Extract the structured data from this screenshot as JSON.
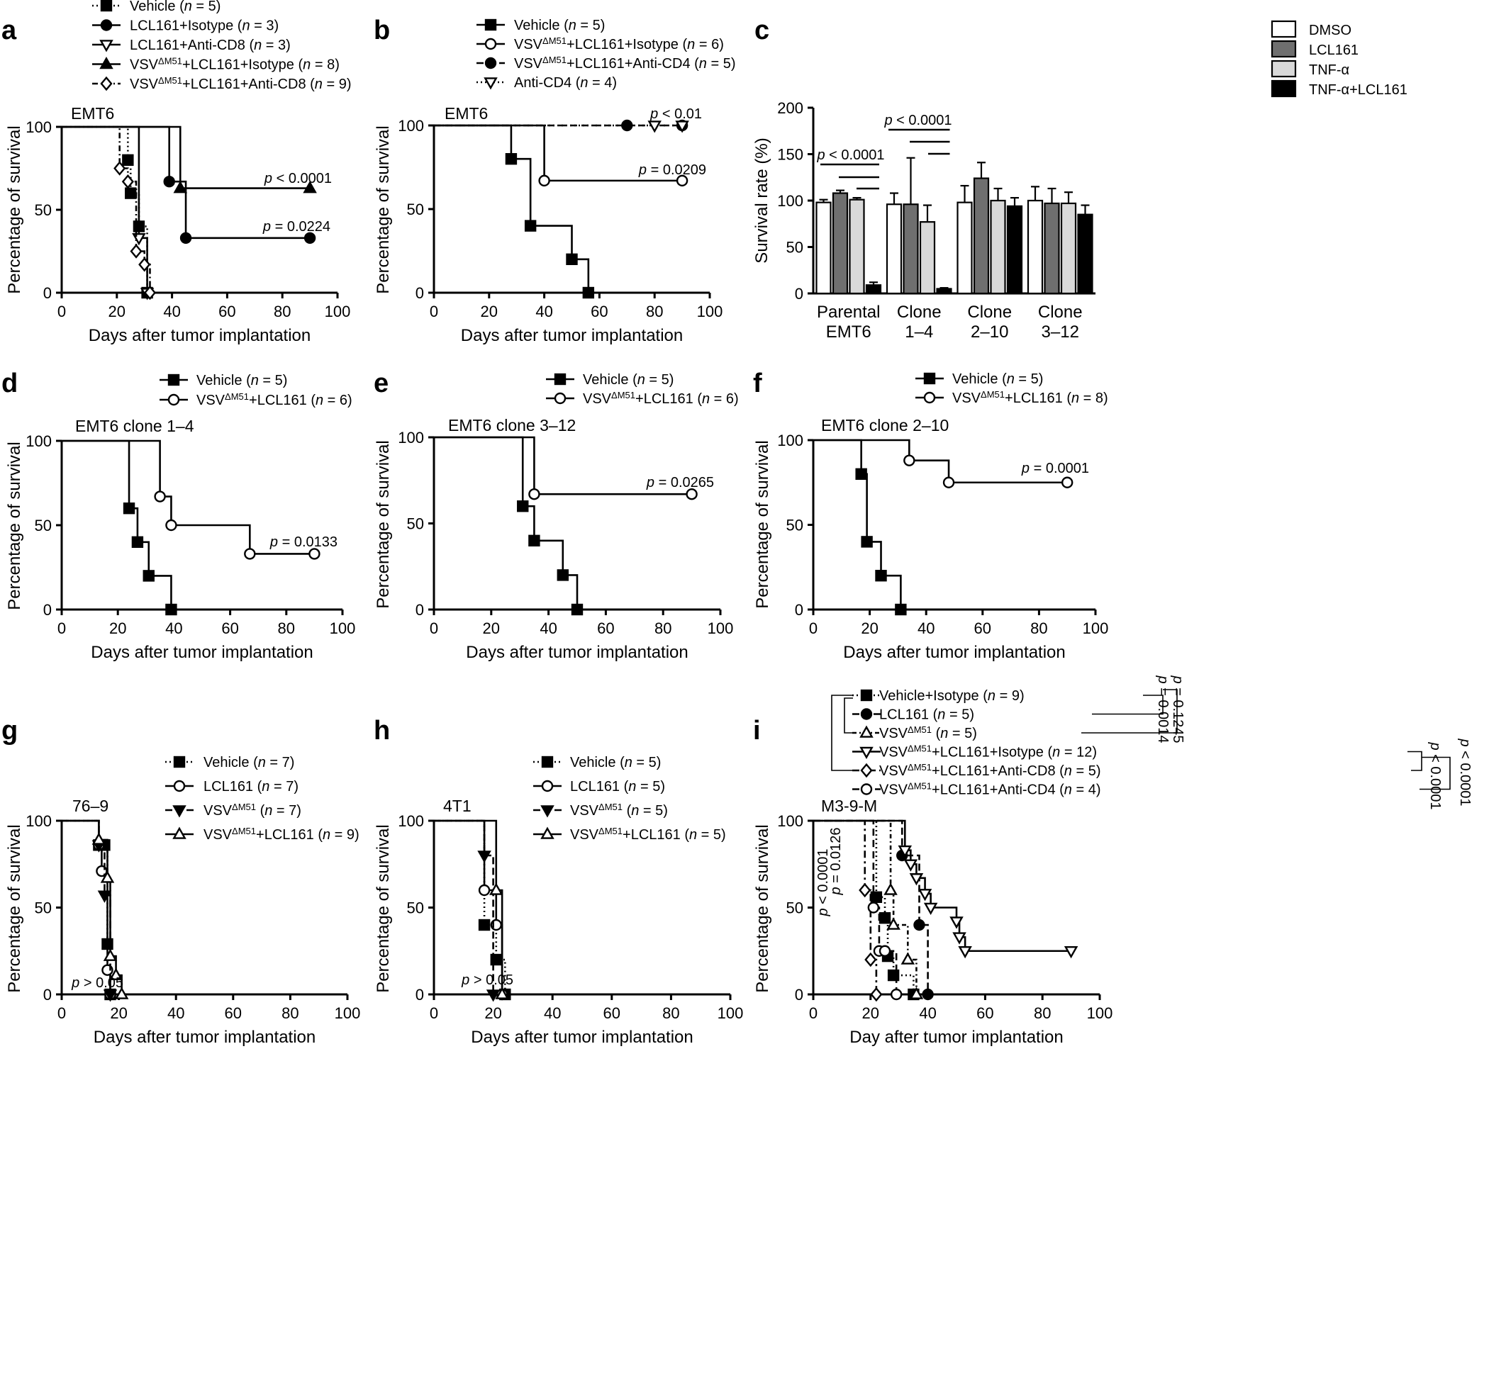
{
  "chart_data": [
    {
      "id": "a",
      "type": "line",
      "subtype": "kaplan-meier",
      "panel_label": "a",
      "title": "EMT6",
      "xlabel": "Days after tumor implantation",
      "ylabel": "Percentage of survival",
      "xlim": [
        0,
        100
      ],
      "ylim": [
        0,
        100
      ],
      "xticks": [
        "0",
        "20",
        "40",
        "60",
        "80",
        "100"
      ],
      "yticks": [
        "0",
        "50",
        "100"
      ],
      "series": [
        {
          "name": "Vehicle (n = 5)",
          "marker": "square-filled",
          "dash": "2,4",
          "x": [
            0,
            24,
            25,
            28,
            31
          ],
          "y": [
            100,
            80,
            60,
            40,
            0
          ]
        },
        {
          "name": "LCL161+Isotype (n = 3)",
          "marker": "circle-filled",
          "dash": "",
          "x": [
            0,
            39,
            45,
            90
          ],
          "y": [
            100,
            67,
            33,
            33
          ]
        },
        {
          "name": "LCL161+Anti-CD8 (n = 3)",
          "marker": "tri-down-open",
          "dash": "",
          "x": [
            0,
            28,
            31
          ],
          "y": [
            100,
            33,
            0
          ]
        },
        {
          "name": "VSVΔM51+LCL161+Isotype (n = 8)",
          "marker": "tri-up-filled",
          "dash": "",
          "x": [
            0,
            43,
            90
          ],
          "y": [
            100,
            63,
            63
          ]
        },
        {
          "name": "VSVΔM51+LCL161+Anti-CD8 (n = 9)",
          "marker": "diamond-open",
          "dash": "8,4,2,4",
          "x": [
            0,
            21,
            24,
            27,
            30,
            32
          ],
          "y": [
            100,
            75,
            67,
            25,
            17,
            0
          ]
        }
      ],
      "annotations": [
        {
          "text": "p < 0.0001",
          "x": 90,
          "y": 63
        },
        {
          "text": "p = 0.0224",
          "x": 90,
          "y": 33
        }
      ]
    },
    {
      "id": "b",
      "type": "line",
      "subtype": "kaplan-meier",
      "panel_label": "b",
      "title": "EMT6",
      "xlabel": "Days after tumor implantation",
      "ylabel": "Percentage of survival",
      "xlim": [
        0,
        100
      ],
      "ylim": [
        0,
        100
      ],
      "xticks": [
        "0",
        "20",
        "40",
        "60",
        "80",
        "100"
      ],
      "yticks": [
        "0",
        "50",
        "100"
      ],
      "series": [
        {
          "name": "Vehicle (n = 5)",
          "marker": "square-filled",
          "dash": "",
          "x": [
            0,
            28,
            35,
            50,
            56
          ],
          "y": [
            100,
            80,
            40,
            20,
            0
          ]
        },
        {
          "name": "VSVΔM51+LCL161+Isotype (n = 6)",
          "marker": "circle-open",
          "dash": "",
          "x": [
            0,
            40,
            90
          ],
          "y": [
            100,
            67,
            67
          ]
        },
        {
          "name": "VSVΔM51+LCL161+Anti-CD4 (n = 5)",
          "marker": "circle-filled",
          "dash": "10,6",
          "x": [
            0,
            70,
            90
          ],
          "y": [
            100,
            100,
            100
          ]
        },
        {
          "name": "Anti-CD4 (n = 4)",
          "marker": "tri-down-open",
          "dash": "2,4",
          "x": [
            0,
            80,
            90
          ],
          "y": [
            100,
            100,
            100
          ]
        }
      ],
      "annotations": [
        {
          "text": "p < 0.01",
          "x": 90,
          "y": 100
        },
        {
          "text": "p = 0.0209",
          "x": 90,
          "y": 67
        }
      ]
    },
    {
      "id": "c",
      "type": "bar",
      "panel_label": "c",
      "ylabel": "Survival rate (%)",
      "ylim": [
        0,
        200
      ],
      "yticks": [
        "0",
        "50",
        "100",
        "150",
        "200"
      ],
      "categories": [
        "Parental\nEMT6",
        "Clone\n1–4",
        "Clone\n2–10",
        "Clone\n3–12"
      ],
      "series": [
        {
          "name": "DMSO",
          "color": "#ffffff",
          "values": [
            98,
            96,
            98,
            100
          ],
          "errors": [
            3,
            12,
            18,
            15
          ]
        },
        {
          "name": "LCL161",
          "color": "#6f6f6f",
          "values": [
            108,
            96,
            124,
            97
          ],
          "errors": [
            3,
            50,
            17,
            16
          ]
        },
        {
          "name": "TNF-α",
          "color": "#d9d9d9",
          "values": [
            101,
            77,
            100,
            97
          ],
          "errors": [
            2,
            18,
            13,
            12
          ]
        },
        {
          "name": "TNF-α+LCL161",
          "color": "#000000",
          "values": [
            9,
            5,
            94,
            85
          ],
          "errors": [
            3,
            1,
            9,
            10
          ]
        }
      ],
      "annotations": [
        {
          "text": "p < 0.0001",
          "group": 0
        },
        {
          "text": "p < 0.0001",
          "group": 1
        }
      ]
    },
    {
      "id": "d",
      "type": "line",
      "subtype": "kaplan-meier",
      "panel_label": "d",
      "title": "EMT6 clone 1–4",
      "xlabel": "Days after tumor implantation",
      "ylabel": "Percentage of survival",
      "xlim": [
        0,
        100
      ],
      "ylim": [
        0,
        100
      ],
      "xticks": [
        "0",
        "20",
        "40",
        "60",
        "80",
        "100"
      ],
      "yticks": [
        "0",
        "50",
        "100"
      ],
      "series": [
        {
          "name": "Vehicle (n = 5)",
          "marker": "square-filled",
          "dash": "",
          "x": [
            0,
            24,
            27,
            31,
            39
          ],
          "y": [
            100,
            60,
            40,
            20,
            0
          ]
        },
        {
          "name": "VSVΔM51+LCL161 (n = 6)",
          "marker": "circle-open",
          "dash": "",
          "x": [
            0,
            35,
            39,
            67,
            90
          ],
          "y": [
            100,
            67,
            50,
            33,
            33
          ]
        }
      ],
      "annotations": [
        {
          "text": "p = 0.0133",
          "x": 90,
          "y": 33
        }
      ]
    },
    {
      "id": "e",
      "type": "line",
      "subtype": "kaplan-meier",
      "panel_label": "e",
      "title": "EMT6 clone 3–12",
      "xlabel": "Days after tumor implantation",
      "ylabel": "Percentage of survival",
      "xlim": [
        0,
        100
      ],
      "ylim": [
        0,
        100
      ],
      "xticks": [
        "0",
        "20",
        "40",
        "60",
        "80",
        "100"
      ],
      "yticks": [
        "0",
        "50",
        "100"
      ],
      "series": [
        {
          "name": "Vehicle (n = 5)",
          "marker": "square-filled",
          "dash": "",
          "x": [
            0,
            31,
            35,
            45,
            50
          ],
          "y": [
            100,
            60,
            40,
            20,
            0
          ]
        },
        {
          "name": "VSVΔM51+LCL161 (n = 6)",
          "marker": "circle-open",
          "dash": "",
          "x": [
            0,
            35,
            90
          ],
          "y": [
            100,
            67,
            67
          ]
        }
      ],
      "annotations": [
        {
          "text": "p = 0.0265",
          "x": 90,
          "y": 67
        }
      ]
    },
    {
      "id": "f",
      "type": "line",
      "subtype": "kaplan-meier",
      "panel_label": "f",
      "title": "EMT6 clone 2–10",
      "xlabel": "Days after tumor implantation",
      "ylabel": "Percentage of survival",
      "xlim": [
        0,
        100
      ],
      "ylim": [
        0,
        100
      ],
      "xticks": [
        "0",
        "20",
        "40",
        "60",
        "80",
        "100"
      ],
      "yticks": [
        "0",
        "50",
        "100"
      ],
      "series": [
        {
          "name": "Vehicle (n = 5)",
          "marker": "square-filled",
          "dash": "",
          "x": [
            0,
            17,
            19,
            24,
            31
          ],
          "y": [
            100,
            80,
            40,
            20,
            0
          ]
        },
        {
          "name": "VSVΔM51+LCL161 (n = 8)",
          "marker": "circle-open",
          "dash": "",
          "x": [
            0,
            34,
            48,
            90
          ],
          "y": [
            100,
            88,
            75,
            75
          ]
        }
      ],
      "annotations": [
        {
          "text": "p = 0.0001",
          "x": 90,
          "y": 75
        }
      ]
    },
    {
      "id": "g",
      "type": "line",
      "subtype": "kaplan-meier",
      "panel_label": "g",
      "title": "76–9",
      "xlabel": "Days after tumor implantation",
      "ylabel": "Percentage of survival",
      "xlim": [
        0,
        100
      ],
      "ylim": [
        0,
        100
      ],
      "xticks": [
        "0",
        "20",
        "40",
        "60",
        "80",
        "100"
      ],
      "yticks": [
        "0",
        "50",
        "100"
      ],
      "series": [
        {
          "name": "Vehicle (n = 7)",
          "marker": "square-filled",
          "dash": "2,4",
          "x": [
            0,
            13,
            15,
            16,
            17
          ],
          "y": [
            100,
            86,
            86,
            29,
            0
          ]
        },
        {
          "name": "LCL161 (n = 7)",
          "marker": "circle-open",
          "dash": "",
          "x": [
            0,
            13,
            14,
            16,
            17
          ],
          "y": [
            100,
            86,
            71,
            14,
            0
          ]
        },
        {
          "name": "VSVΔM51 (n = 7)",
          "marker": "tri-down-filled",
          "dash": "10,5",
          "x": [
            0,
            13,
            15,
            17
          ],
          "y": [
            100,
            86,
            57,
            0
          ]
        },
        {
          "name": "VSVΔM51+LCL161 (n = 9)",
          "marker": "tri-up-open",
          "dash": "",
          "x": [
            0,
            13,
            16,
            17,
            19,
            21
          ],
          "y": [
            100,
            89,
            67,
            22,
            11,
            0
          ]
        }
      ],
      "annotations": [
        {
          "text": "p > 0.05",
          "x": 22,
          "y": 5
        }
      ]
    },
    {
      "id": "h",
      "type": "line",
      "subtype": "kaplan-meier",
      "panel_label": "h",
      "title": "4T1",
      "xlabel": "Days after tumor implantation",
      "ylabel": "Percentage of survival",
      "xlim": [
        0,
        100
      ],
      "ylim": [
        0,
        100
      ],
      "xticks": [
        "0",
        "20",
        "40",
        "60",
        "80",
        "100"
      ],
      "yticks": [
        "0",
        "50",
        "100"
      ],
      "series": [
        {
          "name": "Vehicle (n = 5)",
          "marker": "square-filled",
          "dash": "2,4",
          "x": [
            0,
            17,
            21,
            24
          ],
          "y": [
            100,
            40,
            20,
            0
          ]
        },
        {
          "name": "LCL161 (n = 5)",
          "marker": "circle-open",
          "dash": "",
          "x": [
            0,
            17,
            21,
            23
          ],
          "y": [
            100,
            60,
            40,
            0
          ]
        },
        {
          "name": "VSVΔM51 (n = 5)",
          "marker": "tri-down-filled",
          "dash": "10,5",
          "x": [
            0,
            17,
            20
          ],
          "y": [
            100,
            80,
            0
          ]
        },
        {
          "name": "VSVΔM51+LCL161 (n = 5)",
          "marker": "tri-up-open",
          "dash": "",
          "x": [
            0,
            21,
            23
          ],
          "y": [
            100,
            60,
            0
          ]
        }
      ],
      "annotations": [
        {
          "text": "p > 0.05",
          "x": 28,
          "y": 8
        }
      ]
    },
    {
      "id": "i",
      "type": "line",
      "subtype": "kaplan-meier",
      "panel_label": "i",
      "title": "M3-9-M",
      "xlabel": "Day after tumor implantation",
      "ylabel": "Percentage of survival",
      "xlim": [
        0,
        100
      ],
      "ylim": [
        0,
        100
      ],
      "xticks": [
        "0",
        "20",
        "40",
        "60",
        "80",
        "100"
      ],
      "yticks": [
        "0",
        "50",
        "100"
      ],
      "series": [
        {
          "name": "Vehicle+Isotype (n = 9)",
          "marker": "square-filled",
          "dash": "2,4",
          "x": [
            0,
            22,
            25,
            26,
            28,
            35
          ],
          "y": [
            100,
            56,
            44,
            22,
            11,
            0
          ]
        },
        {
          "name": "LCL161 (n = 5)",
          "marker": "circle-filled",
          "dash": "10,5",
          "x": [
            0,
            31,
            37,
            40
          ],
          "y": [
            100,
            80,
            40,
            0
          ]
        },
        {
          "name": "VSVΔM51 (n = 5)",
          "marker": "tri-up-open",
          "dash": "6,4,2,4",
          "x": [
            0,
            27,
            28,
            33,
            36
          ],
          "y": [
            100,
            60,
            40,
            20,
            0
          ]
        },
        {
          "name": "VSVΔM51+LCL161+Isotype (n = 12)",
          "marker": "tri-down-open",
          "dash": "",
          "x": [
            0,
            32,
            34,
            36,
            39,
            41,
            50,
            51,
            53,
            90
          ],
          "y": [
            100,
            83,
            75,
            67,
            58,
            50,
            42,
            33,
            25,
            25
          ]
        },
        {
          "name": "VSVΔM51+LCL161+Anti-CD8 (n = 5)",
          "marker": "diamond-open",
          "dash": "10,5,3,5",
          "x": [
            0,
            18,
            20,
            22
          ],
          "y": [
            100,
            60,
            20,
            0
          ]
        },
        {
          "name": "VSVΔM51+LCL161+Anti-CD4 (n = 4)",
          "marker": "circle-open",
          "dash": "10,6",
          "x": [
            0,
            21,
            23,
            25,
            29
          ],
          "y": [
            100,
            50,
            25,
            25,
            0
          ]
        }
      ],
      "bracket_pvalues": [
        "p < 0.0001",
        "p = 0.0126",
        "p = 0.0014",
        "p = 0.1245",
        "p < 0.0001",
        "p < 0.0001"
      ]
    }
  ]
}
